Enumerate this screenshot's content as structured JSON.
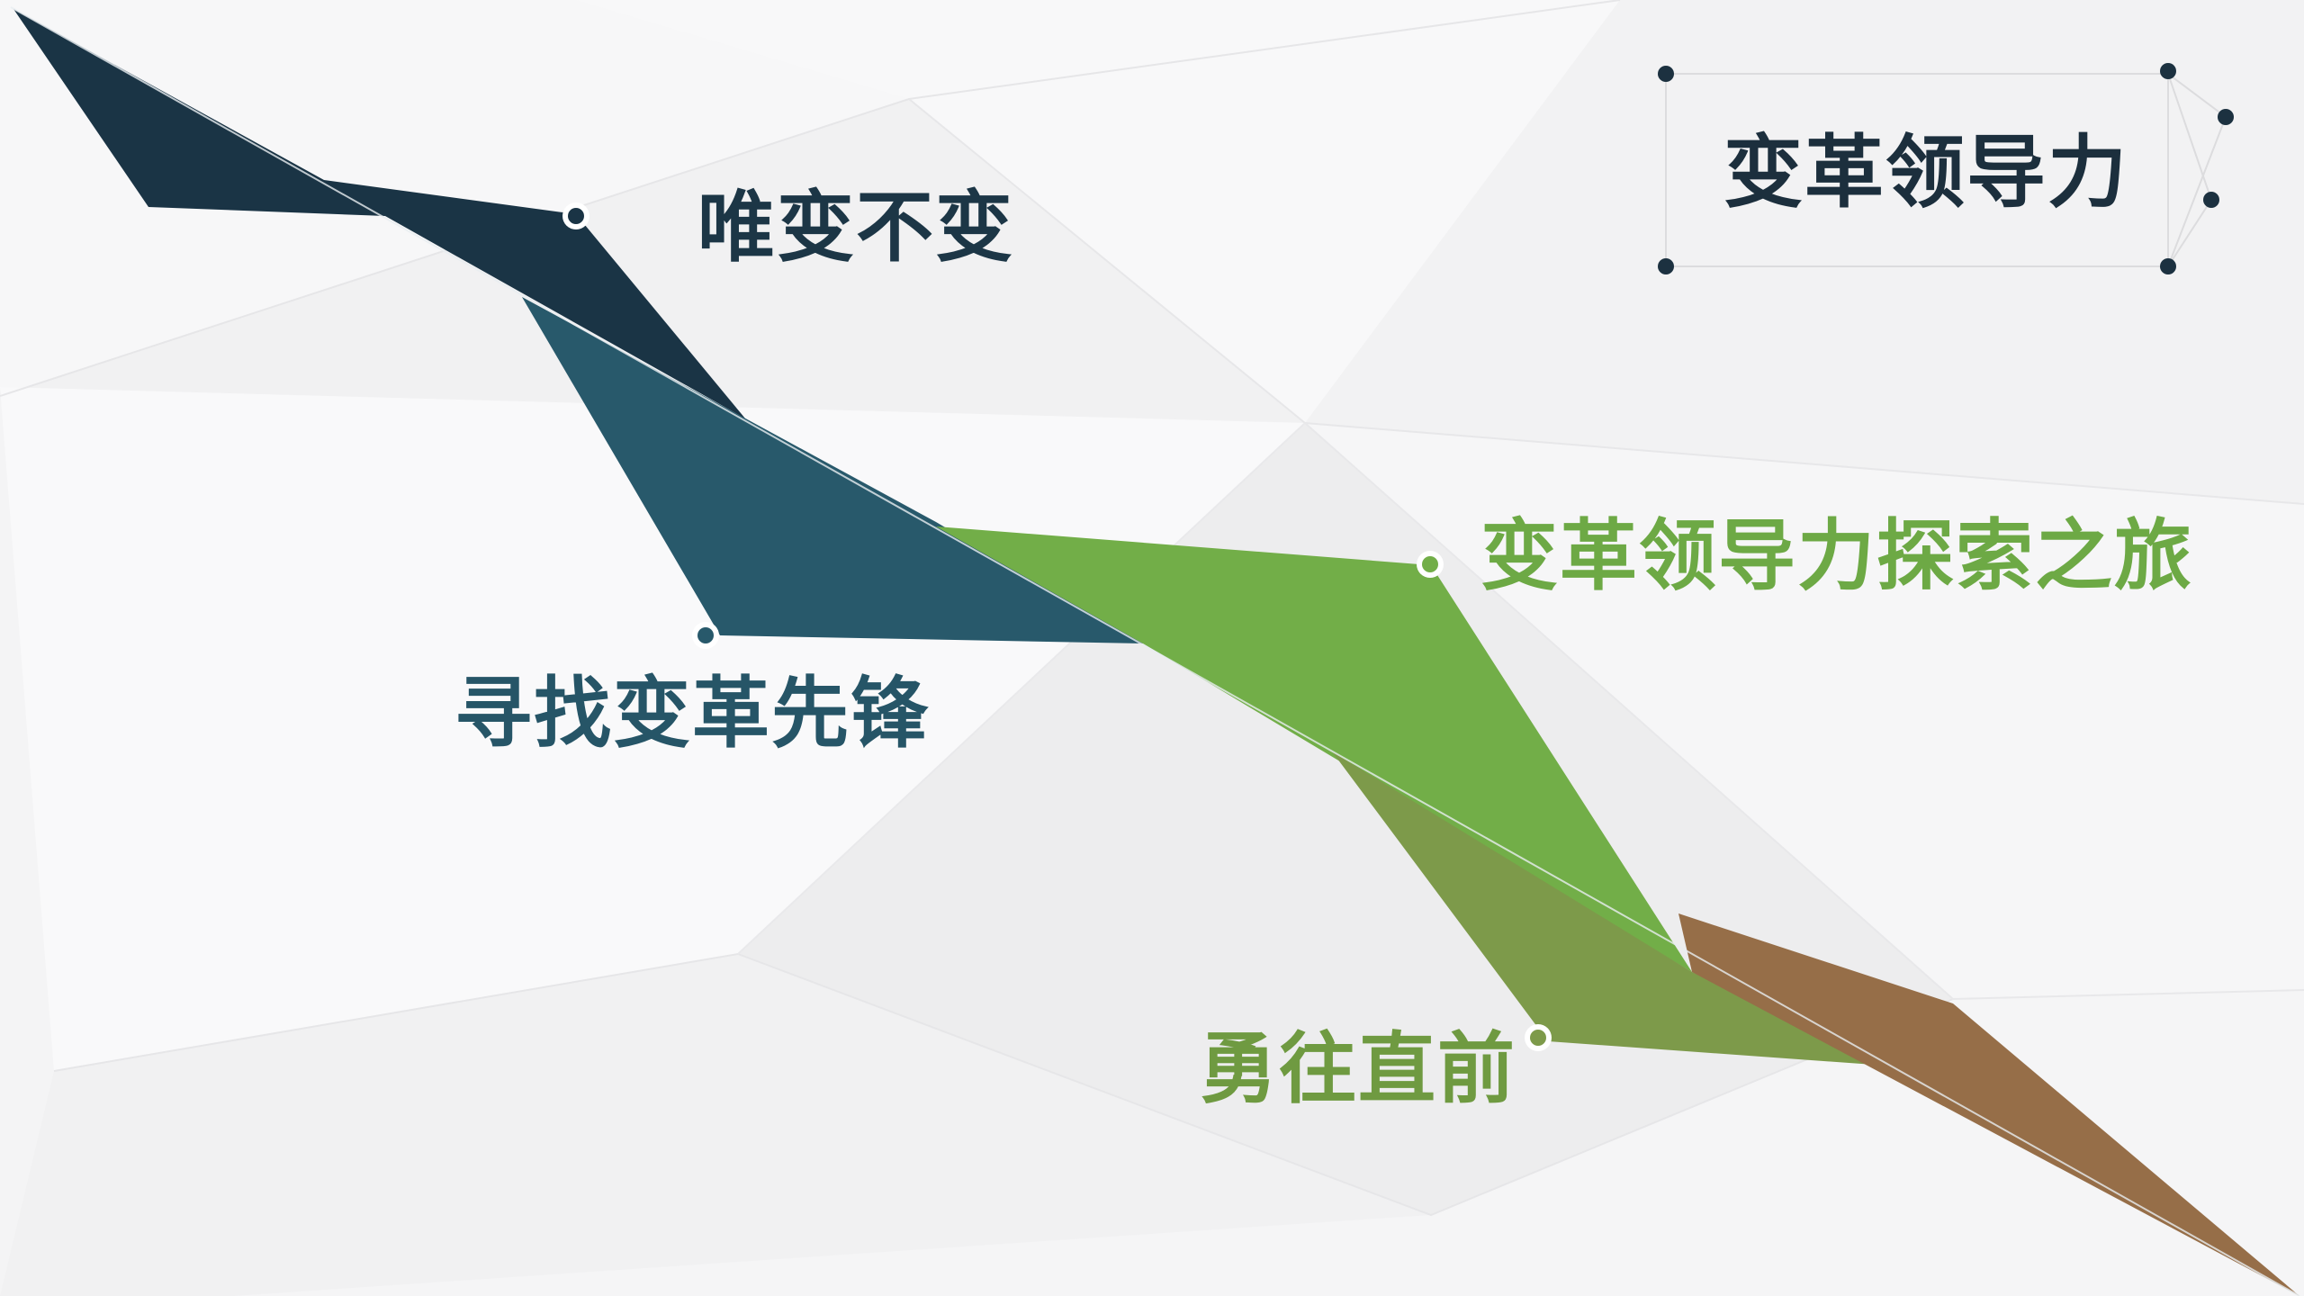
{
  "title": "变革领导力",
  "steps": [
    {
      "label": "唯变不变",
      "color": "#1c3646"
    },
    {
      "label": "寻找变革先锋",
      "color": "#265567"
    },
    {
      "label": "变革领导力探索之旅",
      "color": "#6da945"
    },
    {
      "label": "勇往直前",
      "color": "#7b9b47"
    }
  ],
  "colors": {
    "navy": "#1a3445",
    "teal": "#28596b",
    "green": "#72ae48",
    "olive": "#7d9a4a",
    "brown": "#966e48",
    "background": "#f3f3f4"
  }
}
